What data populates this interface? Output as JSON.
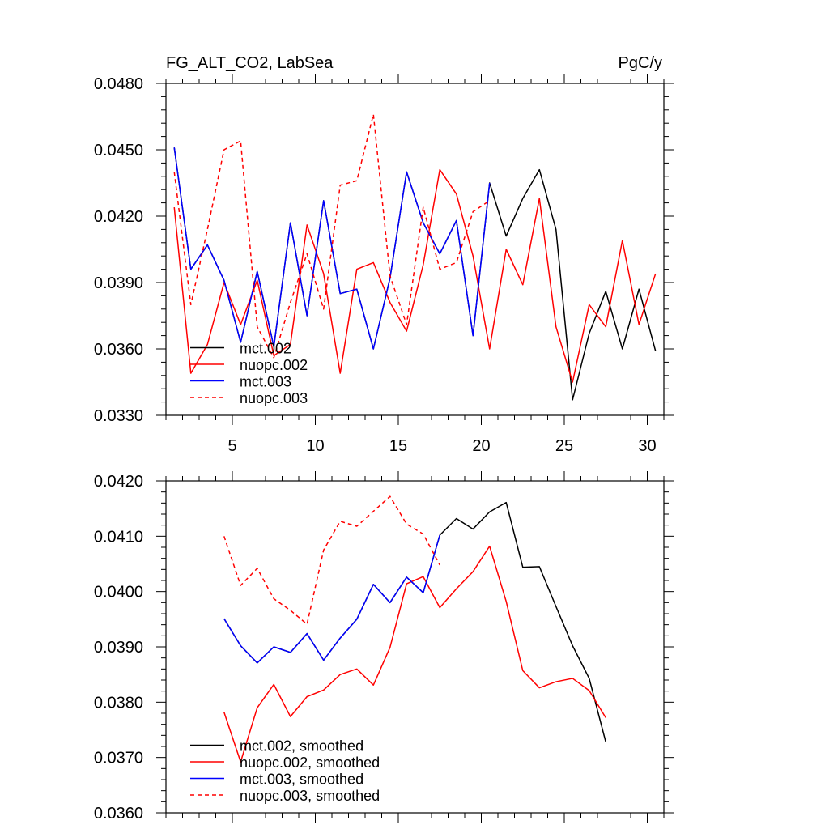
{
  "chart_data": [
    {
      "type": "line",
      "title_left": "FG_ALT_CO2, LabSea",
      "title_right": "PgC/y",
      "xlim": [
        1,
        31
      ],
      "ylim": [
        0.033,
        0.048
      ],
      "x_major_ticks": [
        5,
        10,
        15,
        20,
        25,
        30
      ],
      "x_tick_labels": [
        "5",
        "10",
        "15",
        "20",
        "25",
        "30"
      ],
      "y_major_ticks": [
        0.033,
        0.036,
        0.039,
        0.042,
        0.045,
        0.048
      ],
      "y_tick_labels": [
        "0.0330",
        "0.0360",
        "0.0390",
        "0.0420",
        "0.0450",
        "0.0480"
      ],
      "legend_position": "bottom-left",
      "series": [
        {
          "name": "mct.002",
          "color": "#000000",
          "dash": "solid",
          "x": [
            1.5,
            2.5,
            3.5,
            4.5,
            5.5,
            6.5,
            7.5,
            8.5,
            9.5,
            10.5,
            11.5,
            12.5,
            13.5,
            14.5,
            15.5,
            16.5,
            17.5,
            18.5,
            19.5,
            20.5,
            21.5,
            22.5,
            23.5,
            24.5,
            25.5,
            26.5,
            27.5,
            28.5,
            29.5,
            30.5
          ],
          "values": [
            0.0451,
            0.0396,
            0.0407,
            0.0391,
            0.0363,
            0.0395,
            0.0361,
            0.0417,
            0.0375,
            0.0427,
            0.0385,
            0.0387,
            0.036,
            0.0392,
            0.044,
            0.0417,
            0.0403,
            0.0418,
            0.0366,
            0.0435,
            0.0411,
            0.0428,
            0.0441,
            0.0414,
            0.0337,
            0.0367,
            0.0386,
            0.036,
            0.0387,
            0.0359
          ]
        },
        {
          "name": "nuopc.002",
          "color": "#ff0000",
          "dash": "solid",
          "x": [
            1.5,
            2.5,
            3.5,
            4.5,
            5.5,
            6.5,
            7.5,
            8.5,
            9.5,
            10.5,
            11.5,
            12.5,
            13.5,
            14.5,
            15.5,
            16.5,
            17.5,
            18.5,
            19.5,
            20.5,
            21.5,
            22.5,
            23.5,
            24.5,
            25.5,
            26.5,
            27.5,
            28.5,
            29.5,
            30.5
          ],
          "values": [
            0.0424,
            0.0349,
            0.0362,
            0.039,
            0.0371,
            0.0391,
            0.0357,
            0.0362,
            0.0416,
            0.0394,
            0.0349,
            0.0396,
            0.0399,
            0.0381,
            0.0368,
            0.0398,
            0.0441,
            0.043,
            0.0402,
            0.036,
            0.0405,
            0.0389,
            0.0428,
            0.037,
            0.0345,
            0.038,
            0.037,
            0.0409,
            0.0371,
            0.0394
          ]
        },
        {
          "name": "mct.003",
          "color": "#0000ff",
          "dash": "solid",
          "x": [
            1.5,
            2.5,
            3.5,
            4.5,
            5.5,
            6.5,
            7.5,
            8.5,
            9.5,
            10.5,
            11.5,
            12.5,
            13.5,
            14.5,
            15.5,
            16.5,
            17.5,
            18.5,
            19.5,
            20.5
          ],
          "values": [
            0.0451,
            0.0396,
            0.0407,
            0.0391,
            0.0363,
            0.0395,
            0.0361,
            0.0417,
            0.0375,
            0.0427,
            0.0385,
            0.0387,
            0.036,
            0.0392,
            0.044,
            0.0417,
            0.0403,
            0.0418,
            0.0366,
            0.0435
          ]
        },
        {
          "name": "nuopc.003",
          "color": "#ff0000",
          "dash": "dashed",
          "x": [
            1.5,
            2.5,
            3.5,
            4.5,
            5.5,
            6.5,
            7.5,
            8.5,
            9.5,
            10.5,
            11.5,
            12.5,
            13.5,
            14.5,
            15.5,
            16.5,
            17.5,
            18.5,
            19.5,
            20.5
          ],
          "values": [
            0.044,
            0.038,
            0.0414,
            0.045,
            0.0454,
            0.037,
            0.0356,
            0.0381,
            0.0403,
            0.0378,
            0.0434,
            0.0436,
            0.0466,
            0.0393,
            0.0371,
            0.0424,
            0.0396,
            0.0399,
            0.0422,
            0.0427
          ]
        }
      ]
    },
    {
      "type": "line",
      "xlim": [
        1,
        31
      ],
      "ylim": [
        0.036,
        0.042
      ],
      "x_major_ticks": [
        5,
        10,
        15,
        20,
        25,
        30
      ],
      "x_tick_labels": [],
      "y_major_ticks": [
        0.036,
        0.037,
        0.038,
        0.039,
        0.04,
        0.041,
        0.042
      ],
      "y_tick_labels": [
        "0.0360",
        "0.0370",
        "0.0380",
        "0.0390",
        "0.0400",
        "0.0410",
        "0.0420"
      ],
      "legend_position": "bottom-left",
      "series": [
        {
          "name": "mct.002, smoothed",
          "color": "#000000",
          "dash": "solid",
          "x": [
            4.5,
            5.5,
            6.5,
            7.5,
            8.5,
            9.5,
            10.5,
            11.5,
            12.5,
            13.5,
            14.5,
            15.5,
            16.5,
            17.5,
            18.5,
            19.5,
            20.5,
            21.5,
            22.5,
            23.5,
            24.5,
            25.5,
            26.5,
            27.5
          ],
          "values": [
            0.03951,
            0.03902,
            0.03871,
            0.039,
            0.0389,
            0.03924,
            0.03876,
            0.03916,
            0.0395,
            0.04013,
            0.0398,
            0.04026,
            0.03998,
            0.04102,
            0.04132,
            0.04113,
            0.04144,
            0.04161,
            0.04044,
            0.04045,
            0.03973,
            0.03902,
            0.03843,
            0.03728
          ]
        },
        {
          "name": "nuopc.002, smoothed",
          "color": "#ff0000",
          "dash": "solid",
          "x": [
            4.5,
            5.5,
            6.5,
            7.5,
            8.5,
            9.5,
            10.5,
            11.5,
            12.5,
            13.5,
            14.5,
            15.5,
            16.5,
            17.5,
            18.5,
            19.5,
            20.5,
            21.5,
            22.5,
            23.5,
            24.5,
            25.5,
            26.5,
            27.5
          ],
          "values": [
            0.03782,
            0.03692,
            0.0379,
            0.03832,
            0.03774,
            0.0381,
            0.03822,
            0.0385,
            0.0386,
            0.03831,
            0.03899,
            0.04014,
            0.04027,
            0.03971,
            0.04005,
            0.04036,
            0.04082,
            0.03982,
            0.03857,
            0.03826,
            0.03837,
            0.03843,
            0.03821,
            0.03772
          ]
        },
        {
          "name": "mct.003, smoothed",
          "color": "#0000ff",
          "dash": "solid",
          "x": [
            4.5,
            5.5,
            6.5,
            7.5,
            8.5,
            9.5,
            10.5,
            11.5,
            12.5,
            13.5,
            14.5,
            15.5,
            16.5,
            17.5
          ],
          "values": [
            0.03951,
            0.03902,
            0.03871,
            0.039,
            0.0389,
            0.03924,
            0.03876,
            0.03916,
            0.0395,
            0.04013,
            0.0398,
            0.04026,
            0.03998,
            0.04102
          ]
        },
        {
          "name": "nuopc.003, smoothed",
          "color": "#ff0000",
          "dash": "dashed",
          "x": [
            4.5,
            5.5,
            6.5,
            7.5,
            8.5,
            9.5,
            10.5,
            11.5,
            12.5,
            13.5,
            14.5,
            15.5,
            16.5,
            17.5
          ],
          "values": [
            0.041,
            0.04011,
            0.04042,
            0.03987,
            0.03966,
            0.03941,
            0.04075,
            0.04127,
            0.04118,
            0.04145,
            0.04172,
            0.04122,
            0.04104,
            0.04048
          ]
        }
      ]
    }
  ]
}
